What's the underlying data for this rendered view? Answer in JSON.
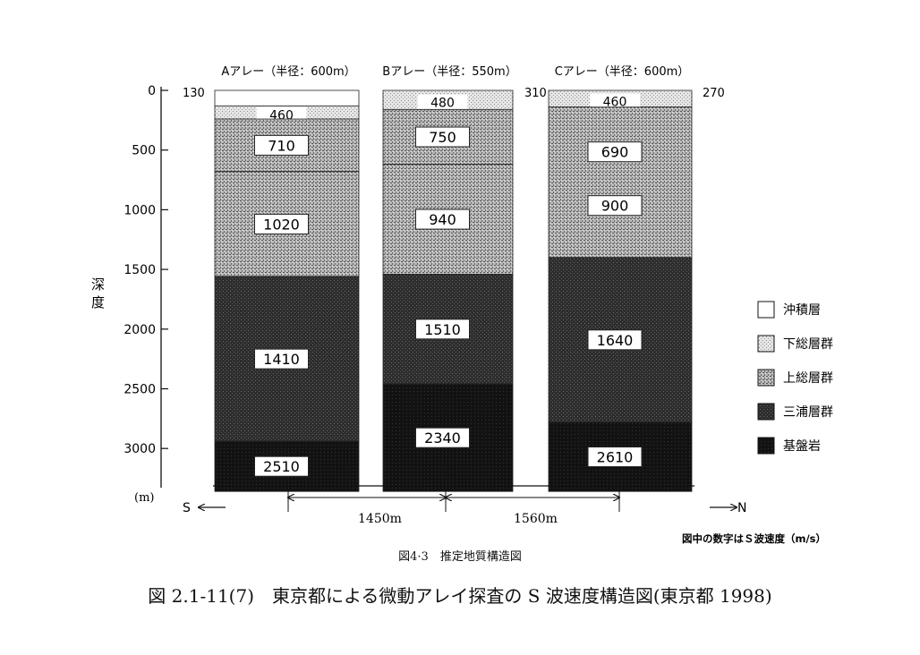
{
  "arrays": [
    {
      "header": "Aアレー（半径：600m）",
      "layers": [
        {
          "unit": "沖積層",
          "top": 0,
          "bottom": 130,
          "vs": ""
        },
        {
          "unit": "下総層群",
          "top": 130,
          "bottom": 240,
          "vs": "460"
        },
        {
          "unit": "上総層群",
          "top": 240,
          "bottom": 680,
          "vs": "710"
        },
        {
          "unit": "上総層群",
          "top": 680,
          "bottom": 1560,
          "vs": "1020"
        },
        {
          "unit": "三浦層群",
          "top": 1560,
          "bottom": 2940,
          "vs": "1410"
        },
        {
          "unit": "基盤岩",
          "top": 2940,
          "bottom": 3360,
          "vs": "2510"
        }
      ]
    },
    {
      "header": "Bアレー（半径：550m）",
      "layers": [
        {
          "unit": "下総層群",
          "top": 0,
          "bottom": 160,
          "vs": "480"
        },
        {
          "unit": "上総層群",
          "top": 160,
          "bottom": 620,
          "vs": "750"
        },
        {
          "unit": "上総層群",
          "top": 620,
          "bottom": 1540,
          "vs": "940"
        },
        {
          "unit": "三浦層群",
          "top": 1540,
          "bottom": 2460,
          "vs": "1510"
        },
        {
          "unit": "基盤岩",
          "top": 2460,
          "bottom": 3360,
          "vs": "2340"
        }
      ]
    },
    {
      "header": "Cアレー（半径：600m）",
      "layers": [
        {
          "unit": "下総層群",
          "top": 0,
          "bottom": 140,
          "vs": "460"
        },
        {
          "unit": "上総層群",
          "top": 140,
          "bottom": 1400,
          "vs": "690 / 900"
        },
        {
          "unit": "三浦層群",
          "top": 1400,
          "bottom": 2780,
          "vs": "1640"
        },
        {
          "unit": "基盤岩",
          "top": 2780,
          "bottom": 3360,
          "vs": "2610"
        }
      ]
    }
  ],
  "side_labels": {
    "a_left": "130",
    "ab_gap": "",
    "bc_gap": "310",
    "c_right": "270"
  },
  "depth_axis": {
    "ticks": [
      "0",
      "500",
      "1000",
      "1500",
      "2000",
      "2500",
      "3000"
    ],
    "unit": "(m)",
    "label": "深\n度"
  },
  "directions": {
    "south": "S",
    "north": "N"
  },
  "distances": [
    "1450m",
    "1560m"
  ],
  "legend": [
    {
      "label": "沖積層",
      "pattern": "alluvium"
    },
    {
      "label": "下総層群",
      "pattern": "shimosa"
    },
    {
      "label": "上総層群",
      "pattern": "kazusa"
    },
    {
      "label": "三浦層群",
      "pattern": "miura"
    },
    {
      "label": "基盤岩",
      "pattern": "basement"
    }
  ],
  "note": "図中の数字はＳ波速度（m/s）",
  "figure_caption": "図4·3　推定地質構造図",
  "main_caption": "図 2.1-11(7)　東京都による微動アレイ探査の S 波速度構造図(東京都 1998)"
}
